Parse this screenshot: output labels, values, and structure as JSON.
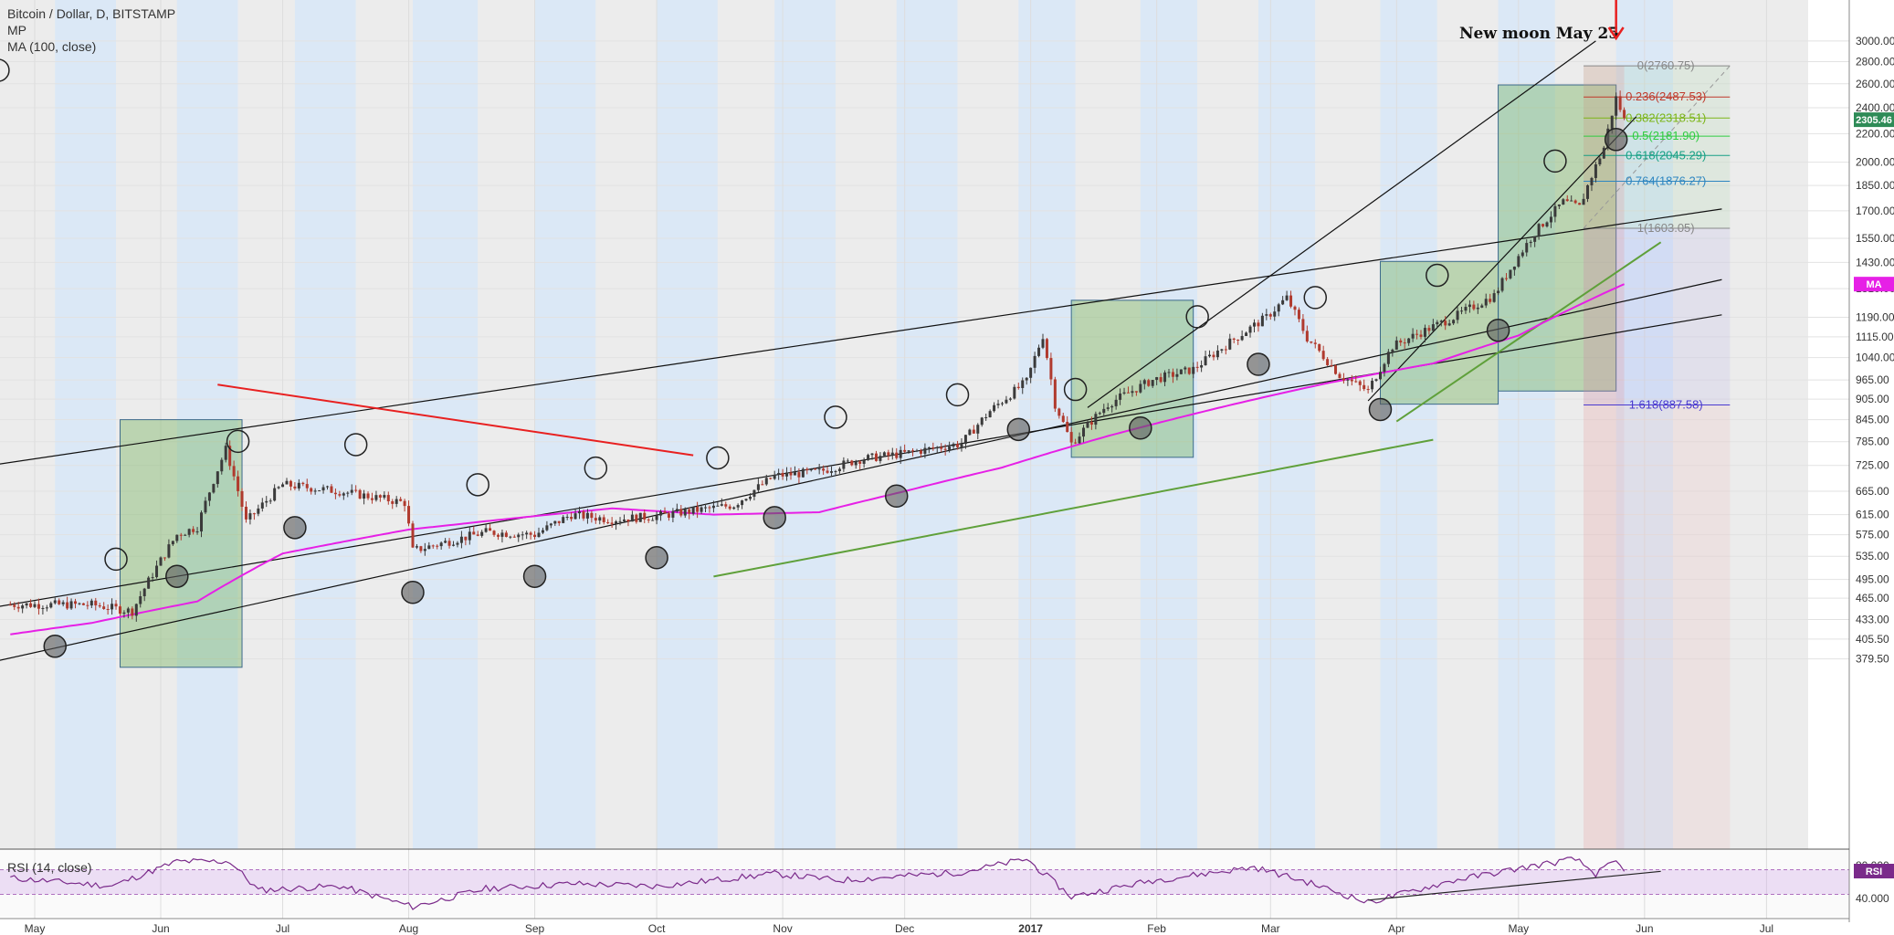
{
  "legend": {
    "symbol": "Bitcoin / Dollar, D, BITSTAMP",
    "line2": "MP",
    "line3": "MA (100, close)"
  },
  "rsi_legend": "RSI (14, close)",
  "annotation": "New moon May 25",
  "price_badge": "2305.46",
  "ma_badge": "MA",
  "rsi_badge": "RSI",
  "colors": {
    "up": "#3a3a3a",
    "down": "#b03a2e",
    "ma": "#e620e6",
    "rsi": "#7a2a8a",
    "bg_dark": "#ececec",
    "bg_light": "#dbe8f6",
    "box": "rgba(96,170,70,0.35)",
    "red_line": "#e82020",
    "green_line": "#5fa03a"
  },
  "fib_levels": [
    {
      "label": "0(2760.75)",
      "price": 2760.75,
      "color": "#888888"
    },
    {
      "label": "0.236(2487.53)",
      "price": 2487.53,
      "color": "#c0392b"
    },
    {
      "label": "0.382(2318.51)",
      "price": 2318.51,
      "color": "#7cb518"
    },
    {
      "label": "0.5(2181.90)",
      "price": 2181.9,
      "color": "#2ecc40"
    },
    {
      "label": "0.618(2045.29)",
      "price": 2045.29,
      "color": "#16a085"
    },
    {
      "label": "0.764(1876.27)",
      "price": 1876.27,
      "color": "#2e86c1"
    },
    {
      "label": "1(1603.05)",
      "price": 1603.05,
      "color": "#888888"
    },
    {
      "label": "1.618(887.58)",
      "price": 887.58,
      "color": "#4a3acf"
    }
  ],
  "chart_data": {
    "type": "candlestick",
    "title": "Bitcoin / Dollar, D, BITSTAMP",
    "y_scale": "log",
    "ylim": [
      350,
      3000
    ],
    "y_ticks": [
      "3000.00",
      "2800.00",
      "2600.00",
      "2400.00",
      "2200.00",
      "2000.00",
      "1850.00",
      "1700.00",
      "1550.00",
      "1430.00",
      "1310.00",
      "1190.00",
      "1115.00",
      "1040.00",
      "965.00",
      "905.00",
      "845.00",
      "785.00",
      "725.00",
      "665.00",
      "615.00",
      "575.00",
      "535.00",
      "495.00",
      "465.00",
      "433.00",
      "405.50",
      "379.50"
    ],
    "x_labels": [
      "May",
      "Jun",
      "Jul",
      "Aug",
      "Sep",
      "Oct",
      "Nov",
      "Dec",
      "2017",
      "Feb",
      "Mar",
      "Apr",
      "May",
      "Jun",
      "Jul"
    ],
    "rsi_ticks": [
      "80.000",
      "40.000"
    ],
    "close_anchors": [
      [
        "2016-04-25",
        455
      ],
      [
        "2016-05-15",
        455
      ],
      [
        "2016-05-25",
        445
      ],
      [
        "2016-06-05",
        575
      ],
      [
        "2016-06-10",
        590
      ],
      [
        "2016-06-17",
        765
      ],
      [
        "2016-06-22",
        600
      ],
      [
        "2016-07-01",
        680
      ],
      [
        "2016-07-15",
        665
      ],
      [
        "2016-07-31",
        640
      ],
      [
        "2016-08-02",
        545
      ],
      [
        "2016-08-20",
        580
      ],
      [
        "2016-09-01",
        575
      ],
      [
        "2016-09-10",
        615
      ],
      [
        "2016-09-20",
        605
      ],
      [
        "2016-10-01",
        612
      ],
      [
        "2016-10-20",
        635
      ],
      [
        "2016-10-30",
        700
      ],
      [
        "2016-11-10",
        710
      ],
      [
        "2016-11-20",
        740
      ],
      [
        "2016-12-01",
        755
      ],
      [
        "2016-12-15",
        780
      ],
      [
        "2016-12-22",
        870
      ],
      [
        "2016-12-31",
        960
      ],
      [
        "2017-01-04",
        1120
      ],
      [
        "2017-01-07",
        890
      ],
      [
        "2017-01-11",
        780
      ],
      [
        "2017-01-20",
        890
      ],
      [
        "2017-01-31",
        965
      ],
      [
        "2017-02-10",
        1000
      ],
      [
        "2017-02-28",
        1190
      ],
      [
        "2017-03-05",
        1270
      ],
      [
        "2017-03-10",
        1110
      ],
      [
        "2017-03-18",
        980
      ],
      [
        "2017-03-25",
        930
      ],
      [
        "2017-03-31",
        1080
      ],
      [
        "2017-04-15",
        1190
      ],
      [
        "2017-04-25",
        1280
      ],
      [
        "2017-05-05",
        1580
      ],
      [
        "2017-05-12",
        1750
      ],
      [
        "2017-05-16",
        1720
      ],
      [
        "2017-05-22",
        2100
      ],
      [
        "2017-05-25",
        2480
      ],
      [
        "2017-05-27",
        2305
      ]
    ],
    "ma100_anchors": [
      [
        "2016-04-25",
        412
      ],
      [
        "2016-05-15",
        428
      ],
      [
        "2016-06-10",
        460
      ],
      [
        "2016-07-01",
        540
      ],
      [
        "2016-08-01",
        585
      ],
      [
        "2016-09-01",
        612
      ],
      [
        "2016-09-20",
        628
      ],
      [
        "2016-10-15",
        615
      ],
      [
        "2016-11-10",
        620
      ],
      [
        "2016-12-01",
        665
      ],
      [
        "2016-12-25",
        720
      ],
      [
        "2017-01-20",
        800
      ],
      [
        "2017-02-20",
        890
      ],
      [
        "2017-03-15",
        955
      ],
      [
        "2017-04-10",
        1020
      ],
      [
        "2017-05-01",
        1120
      ],
      [
        "2017-05-27",
        1330
      ]
    ],
    "rsi_anchors": [
      [
        "2016-04-25",
        65
      ],
      [
        "2016-05-20",
        55
      ],
      [
        "2016-06-05",
        85
      ],
      [
        "2016-06-18",
        85
      ],
      [
        "2016-06-25",
        50
      ],
      [
        "2016-07-15",
        55
      ],
      [
        "2016-08-02",
        30
      ],
      [
        "2016-08-20",
        52
      ],
      [
        "2016-09-10",
        58
      ],
      [
        "2016-10-01",
        55
      ],
      [
        "2016-10-30",
        70
      ],
      [
        "2016-11-15",
        62
      ],
      [
        "2016-12-15",
        72
      ],
      [
        "2016-12-31",
        88
      ],
      [
        "2017-01-11",
        42
      ],
      [
        "2017-01-31",
        62
      ],
      [
        "2017-02-25",
        78
      ],
      [
        "2017-03-10",
        60
      ],
      [
        "2017-03-25",
        35
      ],
      [
        "2017-04-15",
        62
      ],
      [
        "2017-05-05",
        80
      ],
      [
        "2017-05-15",
        88
      ],
      [
        "2017-05-20",
        70
      ],
      [
        "2017-05-25",
        85
      ],
      [
        "2017-05-27",
        72
      ]
    ],
    "full_moons": [
      "2016-04-22",
      "2016-05-21",
      "2016-06-20",
      "2016-07-19",
      "2016-08-18",
      "2016-09-16",
      "2016-10-16",
      "2016-11-14",
      "2016-12-14",
      "2017-01-12",
      "2017-02-11",
      "2017-03-12",
      "2017-04-11",
      "2017-05-10"
    ],
    "new_moons": [
      "2016-05-06",
      "2016-06-05",
      "2016-07-04",
      "2016-08-02",
      "2016-09-01",
      "2016-10-01",
      "2016-10-30",
      "2016-11-29",
      "2016-12-29",
      "2017-01-28",
      "2017-02-26",
      "2017-03-28",
      "2017-04-26",
      "2017-05-25"
    ]
  }
}
